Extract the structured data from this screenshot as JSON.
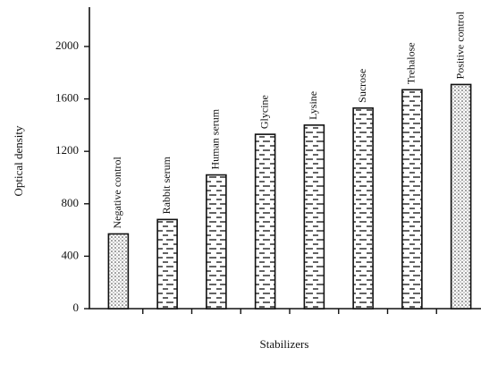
{
  "chart_data": {
    "type": "bar",
    "x_label": "Stabilizers",
    "y_label": "Optical density",
    "categories": [
      "Negative control",
      "Rabbit serum",
      "Human serum",
      "Glycine",
      "Lysine",
      "Sucrose",
      "Trehalose",
      "Positive control"
    ],
    "values": [
      570,
      680,
      1020,
      1330,
      1400,
      1530,
      1670,
      1710
    ],
    "bar_patterns": [
      "dots",
      "bricks",
      "bricks",
      "bricks",
      "bricks",
      "bricks",
      "bricks",
      "dots"
    ],
    "ylim": [
      0,
      2300
    ],
    "yticks": [
      0,
      400,
      800,
      1200,
      1600,
      2000
    ]
  }
}
